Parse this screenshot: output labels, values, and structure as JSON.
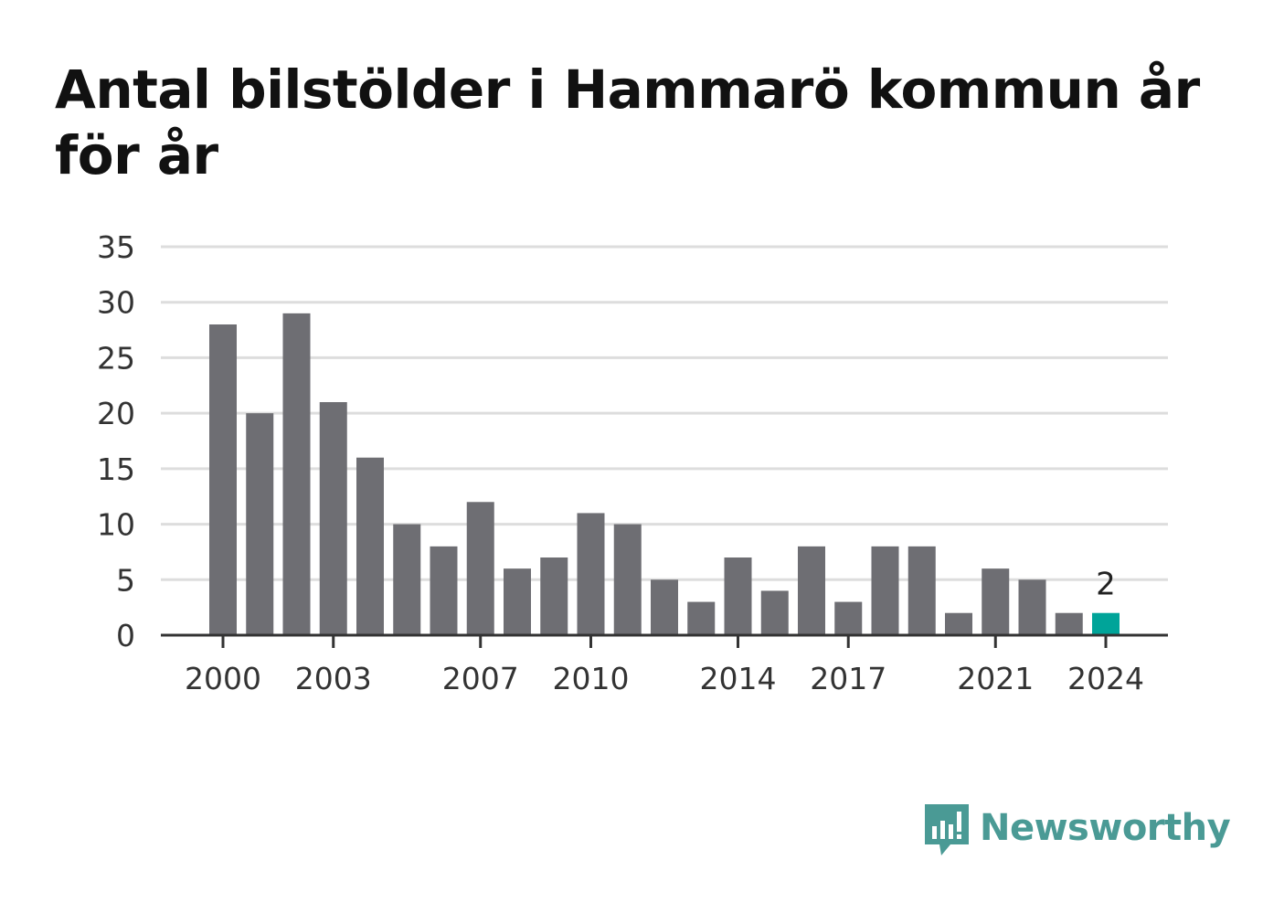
{
  "colors": {
    "bar": "#6e6e73",
    "highlight": "#00a499",
    "grid": "#dddddd",
    "axis": "#333333",
    "brand": "#4a9a95"
  },
  "brand": {
    "name": "Newsworthy",
    "icon": "bar-chart-speech-icon"
  },
  "chart_data": {
    "type": "bar",
    "title": "Antal bilstölder i Hammarö kommun år för år",
    "xlabel": "",
    "ylabel": "",
    "ylim": [
      0,
      35
    ],
    "yticks": [
      0,
      5,
      10,
      15,
      20,
      25,
      30,
      35
    ],
    "grid": true,
    "categories": [
      "2000",
      "2001",
      "2002",
      "2003",
      "2004",
      "2005",
      "2006",
      "2007",
      "2008",
      "2009",
      "2010",
      "2011",
      "2012",
      "2013",
      "2014",
      "2015",
      "2016",
      "2017",
      "2018",
      "2019",
      "2020",
      "2021",
      "2022",
      "2023",
      "2024"
    ],
    "xtick_labels": [
      "2000",
      "2003",
      "2007",
      "2010",
      "2014",
      "2017",
      "2021",
      "2024"
    ],
    "values": [
      28,
      20,
      29,
      21,
      16,
      10,
      8,
      12,
      6,
      7,
      11,
      10,
      5,
      3,
      7,
      4,
      8,
      3,
      8,
      8,
      2,
      6,
      5,
      2,
      2
    ],
    "highlight_index": 24,
    "annotations": [
      {
        "category": "2024",
        "text": "2"
      }
    ]
  }
}
